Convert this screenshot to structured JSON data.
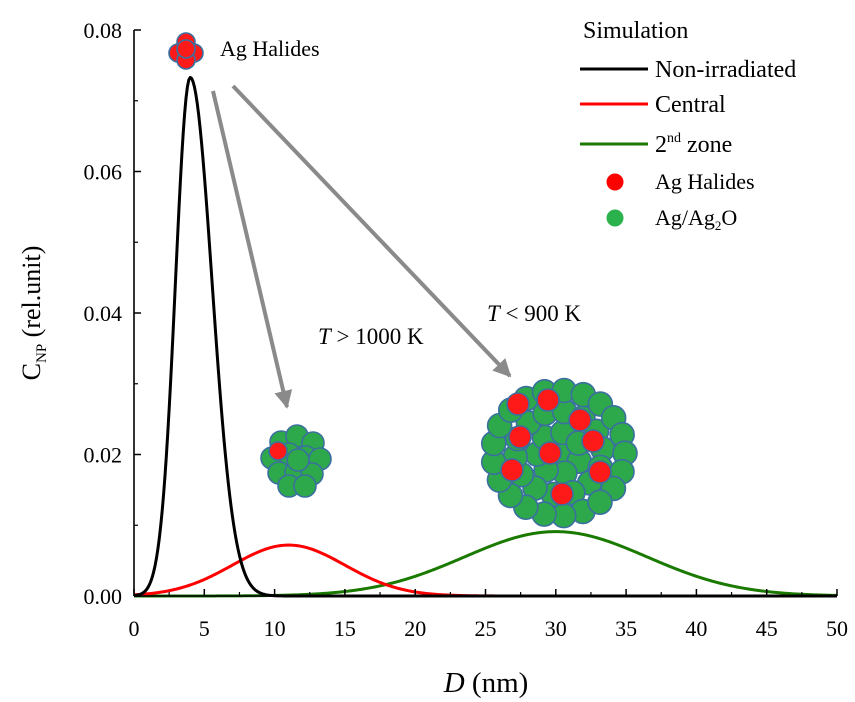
{
  "chart_data": {
    "type": "line",
    "title": "",
    "xlabel": {
      "italic": "D",
      "rest": " (nm)"
    },
    "ylabel": {
      "main": "C",
      "sub": "NP",
      "rest": " (rel.unit)"
    },
    "xlim": [
      0,
      50
    ],
    "ylim": [
      0,
      0.08
    ],
    "xticks": [
      0,
      5,
      10,
      15,
      20,
      25,
      30,
      35,
      40,
      45,
      50
    ],
    "xtick_labels": [
      "0",
      "5",
      "10",
      "15",
      "20",
      "25",
      "30",
      "35",
      "40",
      "45",
      "50"
    ],
    "yticks": [
      0,
      0.02,
      0.04,
      0.06,
      0.08
    ],
    "ytick_labels": [
      "0.00",
      "0.02",
      "0.04",
      "0.06",
      "0.08"
    ],
    "grid": false,
    "legend_position": "top-right",
    "legend_title": "Simulation",
    "series": [
      {
        "name": "Non-irradiated",
        "color": "#000000",
        "peak_x": 4.0,
        "peak_y": 0.0733,
        "sigma_low": 1.05,
        "sigma_high": 1.55
      },
      {
        "name": "Central",
        "color": "#ff0000",
        "peak_x": 11.0,
        "peak_y": 0.0072,
        "sigma_low": 4.0,
        "sigma_high": 4.0
      },
      {
        "name": "2nd zone",
        "color": "#1a7a00",
        "name_base": "2",
        "name_sup": "nd",
        "name_rest": " zone",
        "peak_x": 30.0,
        "peak_y": 0.0091,
        "sigma_low": 6.5,
        "sigma_high": 6.5
      }
    ],
    "marker_legend": [
      {
        "name": "Ag Halides",
        "color": "#ff0000"
      },
      {
        "name": "Ag/Ag2O",
        "base": "Ag/Ag",
        "sub": "2",
        "rest": "O",
        "color": "#2bb24c"
      }
    ],
    "annotations": [
      {
        "id": "ag-halides",
        "text": "Ag Halides"
      },
      {
        "id": "t-high",
        "italic": "T",
        "text": " > 1000 K"
      },
      {
        "id": "t-low",
        "italic": "T",
        "text": " < 900 K"
      }
    ]
  }
}
